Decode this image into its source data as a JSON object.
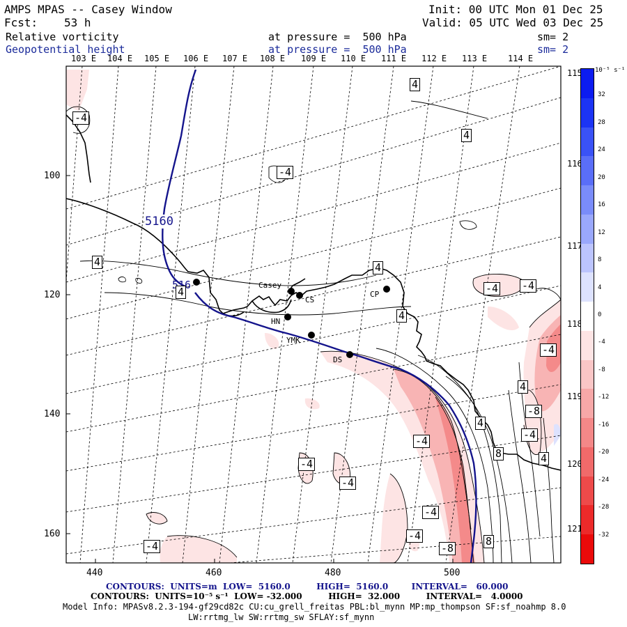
{
  "header": {
    "title": "AMPS MPAS -- Casey Window",
    "init": "Init: 00 UTC Mon 01 Dec 25",
    "fcst_label": "Fcst:",
    "fcst_value": "53 h",
    "valid": "Valid: 05 UTC Wed 03 Dec 25",
    "field1": "Relative vorticity",
    "field1_level": "at pressure =  500 hPa",
    "field1_sm": "sm= 2",
    "field2": "Geopotential height",
    "field2_level": "at pressure =  500 hPa",
    "field2_sm": "sm= 2"
  },
  "map": {
    "lon_top": [
      "103 E",
      "104 E",
      "105 E",
      "106 E",
      "107 E",
      "108 E",
      "109 E",
      "110 E",
      "111 E",
      "112 E",
      "113 E",
      "114 E"
    ],
    "lon_right": [
      "115 E",
      "116 E",
      "117 E",
      "118 E",
      "119 E",
      "120 E",
      "121 E"
    ],
    "y_ticks": [
      "100",
      "120",
      "140",
      "160"
    ],
    "x_ticks": [
      "440",
      "460",
      "480",
      "500"
    ],
    "contour_labels": [
      "4",
      "-4",
      "4",
      "-4",
      "4",
      "4",
      "-4",
      "-4",
      "4",
      "4",
      "-4",
      "4",
      "-4",
      "-8",
      "4",
      "-4",
      "-4",
      "8",
      "4",
      "-4",
      "-4",
      "-4",
      "-4",
      "-8",
      "8",
      "-4"
    ],
    "height_label": "5160",
    "height_label2": "516",
    "stations": [
      "Casey",
      "CS",
      "CP",
      "HN",
      "YMK",
      "DS"
    ]
  },
  "colorbar": {
    "unit": "10⁻⁵ s⁻¹",
    "labels": [
      "32",
      "28",
      "24",
      "20",
      "16",
      "12",
      "8",
      "4",
      "0",
      "-4",
      "-8",
      "-12",
      "-16",
      "-20",
      "-24",
      "-28",
      "-32"
    ],
    "colors": [
      "#0c1cf0",
      "#1c34f4",
      "#3a52f6",
      "#5a6ef8",
      "#7a8cfa",
      "#9aa8fc",
      "#bcc4fd",
      "#dde2fe",
      "#ffffff",
      "#fde4e4",
      "#fac6c6",
      "#f7a8a8",
      "#f48888",
      "#f16a6a",
      "#ee4a4a",
      "#ec2a2a",
      "#ea0a0a"
    ]
  },
  "footer": {
    "line1": "CONTOURS:  UNITS=m  LOW=  5160.0         HIGH=  5160.0        INTERVAL=   60.000",
    "line2": "CONTOURS:  UNITS=10⁻⁵ s⁻¹  LOW= -32.000         HIGH=  32.000         INTERVAL=   4.0000",
    "line3": "Model Info: MPASv8.2.3-194-gf29cd82c CU:cu_grell_freitas PBL:bl_mynn MP:mp_thompson SF:sf_noahmp 8.0",
    "line4": "LW:rrtmg_lw SW:rrtmg_sw SFLAY:sf_mynn"
  }
}
